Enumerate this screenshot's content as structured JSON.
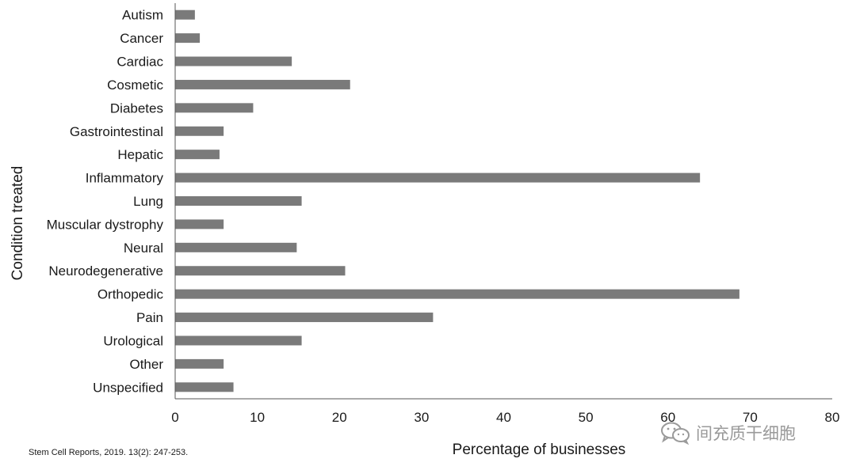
{
  "chart_data": {
    "type": "bar",
    "orientation": "horizontal",
    "categories": [
      "Autism",
      "Cancer",
      "Cardiac",
      "Cosmetic",
      "Diabetes",
      "Gastrointestinal",
      "Hepatic",
      "Inflammatory",
      "Lung",
      "Muscular dystrophy",
      "Neural",
      "Neurodegenerative",
      "Orthopedic",
      "Pain",
      "Urological",
      "Other",
      "Unspecified"
    ],
    "values": [
      2.4,
      3.0,
      14.2,
      21.3,
      9.5,
      5.9,
      5.4,
      63.9,
      15.4,
      5.9,
      14.8,
      20.7,
      68.7,
      31.4,
      15.4,
      5.9,
      7.1
    ],
    "xlabel": "Percentage of businesses",
    "ylabel": "Condition treated",
    "xlim": [
      0,
      80
    ],
    "xticks": [
      "0",
      "10",
      "20",
      "30",
      "40",
      "50",
      "60",
      "70",
      "80"
    ],
    "grid": false,
    "bar_color": "#7a7a7a"
  },
  "source_note": "Stem Cell Reports, 2019. 13(2): 247-253.",
  "watermark": {
    "icon": "wechat-icon",
    "text": "间充质干细胞"
  }
}
